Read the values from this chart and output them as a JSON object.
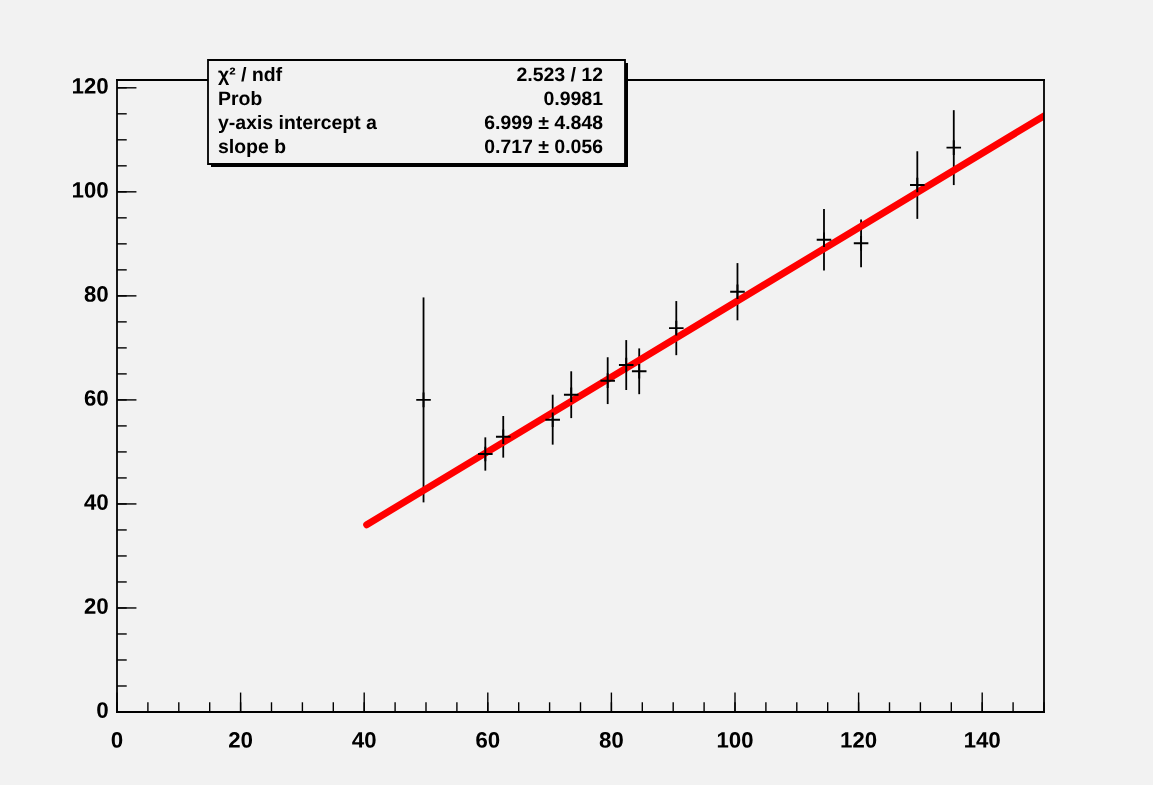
{
  "chart_data": {
    "type": "scatter",
    "series": [
      {
        "color": "#000000",
        "marker": "cross",
        "x": [
          49.6,
          59.6,
          62.5,
          70.5,
          73.5,
          79.4,
          82.4,
          84.5,
          90.5,
          100.4,
          114.4,
          120.4,
          129.5,
          135.4
        ],
        "values": [
          60.0,
          49.6,
          52.9,
          56.2,
          61.0,
          63.7,
          66.7,
          65.5,
          73.8,
          80.8,
          90.8,
          90.1,
          101.3,
          108.5
        ],
        "errors": [
          19.7,
          3.2,
          4.0,
          4.8,
          4.5,
          4.5,
          4.8,
          4.4,
          5.2,
          5.5,
          5.9,
          4.6,
          6.5,
          7.2
        ]
      },
      {
        "type": "line",
        "color": "#ff0000",
        "x": [
          40.4,
          150
        ],
        "values": [
          36.0,
          114.6
        ]
      }
    ],
    "xlim": [
      0,
      150
    ],
    "xticks": [
      0,
      20,
      40,
      60,
      80,
      100,
      120,
      140
    ],
    "ylim": [
      0,
      121.5
    ],
    "yticks": [
      0,
      20,
      40,
      60,
      80,
      100,
      120
    ],
    "grid": false,
    "annotations": [
      "χ² / ndf",
      "2.523 / 12",
      "Prob",
      "0.9981",
      "y-axis intercept a",
      "6.999 ± 4.848",
      "slope b",
      "0.717 ± 0.056"
    ]
  }
}
